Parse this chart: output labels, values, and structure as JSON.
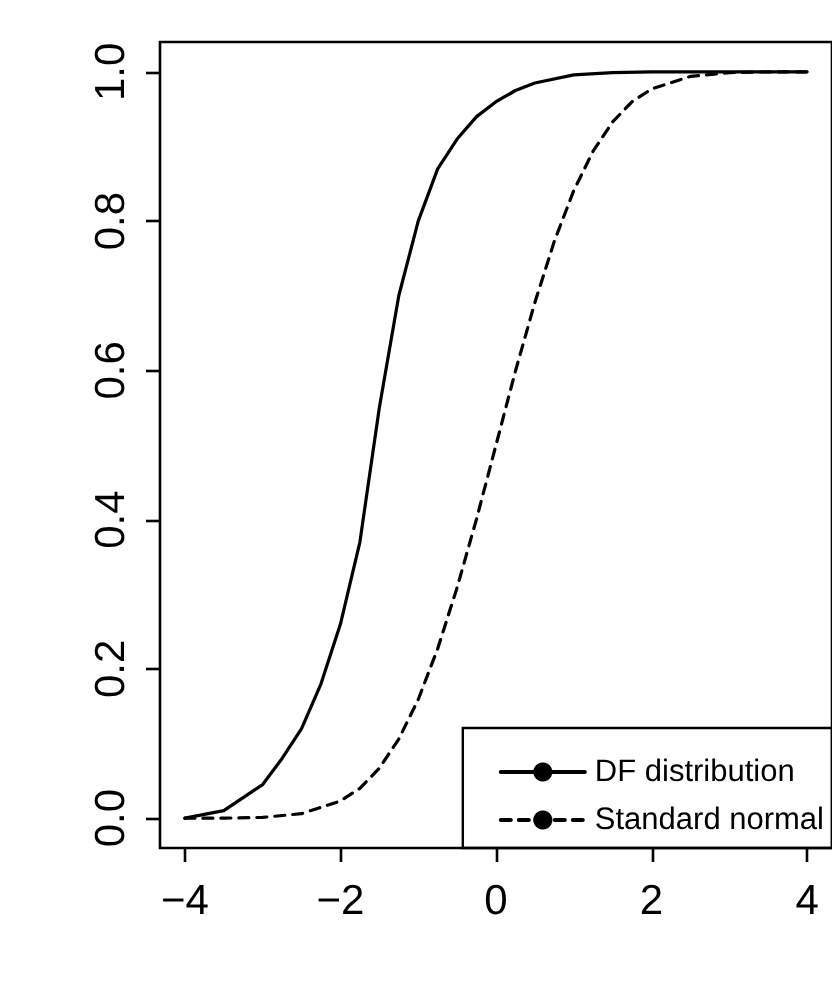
{
  "chart_data": {
    "type": "line",
    "x": [
      -4,
      -3.5,
      -3,
      -2.75,
      -2.5,
      -2.25,
      -2,
      -1.75,
      -1.5,
      -1.25,
      -1,
      -0.75,
      -0.5,
      -0.25,
      0,
      0.25,
      0.5,
      1,
      1.5,
      2,
      3,
      4
    ],
    "series": [
      {
        "name": "DF distribution",
        "color": "#000000",
        "line_style": "solid",
        "values": [
          0.0,
          0.01,
          0.045,
          0.08,
          0.12,
          0.18,
          0.26,
          0.37,
          0.55,
          0.7,
          0.8,
          0.87,
          0.91,
          0.94,
          0.96,
          0.975,
          0.985,
          0.996,
          0.999,
          1.0,
          1.0,
          1.0
        ]
      },
      {
        "name": "Standard normal",
        "color": "#000000",
        "line_style": "dashed",
        "x": [
          -4,
          -3.5,
          -3,
          -2.5,
          -2,
          -1.75,
          -1.5,
          -1.25,
          -1,
          -0.75,
          -0.5,
          -0.25,
          0,
          0.25,
          0.5,
          0.75,
          1,
          1.25,
          1.5,
          1.75,
          2,
          2.5,
          3,
          3.5,
          4
        ],
        "values": [
          0.0,
          0.0,
          0.001,
          0.006,
          0.023,
          0.04,
          0.067,
          0.106,
          0.159,
          0.227,
          0.309,
          0.401,
          0.5,
          0.599,
          0.691,
          0.773,
          0.841,
          0.894,
          0.933,
          0.96,
          0.977,
          0.994,
          0.999,
          1.0,
          1.0
        ]
      }
    ],
    "xlim": [
      -4.32,
      4.32
    ],
    "ylim": [
      -0.04,
      1.04
    ],
    "xticks": [
      {
        "value": -4,
        "label": "−4"
      },
      {
        "value": -2,
        "label": "−2"
      },
      {
        "value": 0,
        "label": "0"
      },
      {
        "value": 2,
        "label": "2"
      },
      {
        "value": 4,
        "label": "4"
      }
    ],
    "yticks": [
      {
        "value": 0,
        "label": "0.0"
      },
      {
        "value": 0.2,
        "label": "0.2"
      },
      {
        "value": 0.4,
        "label": "0.4"
      },
      {
        "value": 0.6,
        "label": "0.6"
      },
      {
        "value": 0.8,
        "label": "0.8"
      },
      {
        "value": 1,
        "label": "1.0"
      }
    ],
    "marker": "none",
    "grid": false,
    "legend": "bottom right"
  }
}
